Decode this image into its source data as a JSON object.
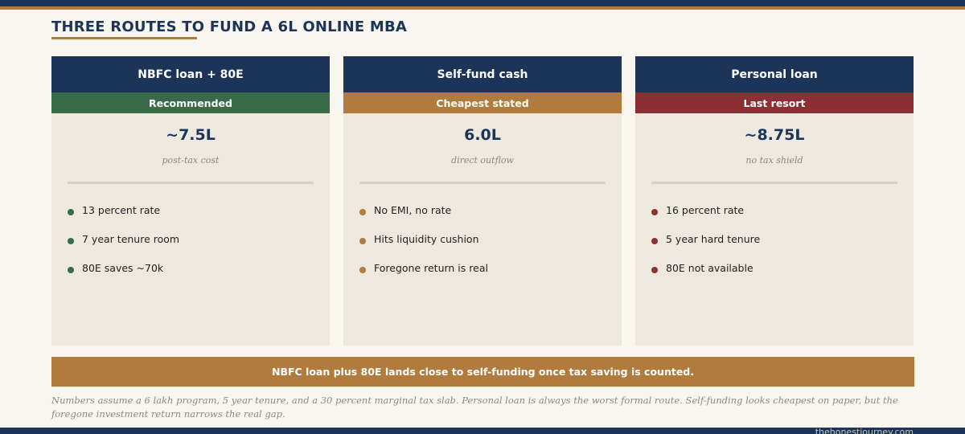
{
  "title": "THREE ROUTES TO FUND A 6L ONLINE MBA",
  "cards": [
    {
      "header": "NBFC loan + 80E",
      "badge": "Recommended",
      "badge_color": "#3a6b48",
      "value": "~7.5L",
      "caption": "post-tax cost",
      "bullets": [
        "13 percent rate",
        "7 year tenure room",
        "80E saves ~70k"
      ]
    },
    {
      "header": "Self-fund cash",
      "badge": "Cheapest stated",
      "badge_color": "#b07b3c",
      "value": "6.0L",
      "caption": "direct outflow",
      "bullets": [
        "No EMI, no rate",
        "Hits liquidity cushion",
        "Foregone return is real"
      ]
    },
    {
      "header": "Personal loan",
      "badge": "Last resort",
      "badge_color": "#8a3034",
      "value": "~8.75L",
      "caption": "no tax shield",
      "bullets": [
        "16 percent rate",
        "5 year hard tenure",
        "80E not available"
      ]
    }
  ],
  "summary": "NBFC loan plus 80E lands close to self-funding once tax saving is counted.",
  "footnote": "Numbers assume a 6 lakh program, 5 year tenure, and a 30 percent marginal tax slab. Personal loan is always the worst formal route. Self-funding looks cheapest on paper, but the foregone investment return narrows the real gap.",
  "site": "thehonestjourney.com",
  "colors": {
    "navy": "#1c3458",
    "gold": "#b07b3c",
    "background": "#f9f6f0",
    "card": "#ede9df"
  }
}
